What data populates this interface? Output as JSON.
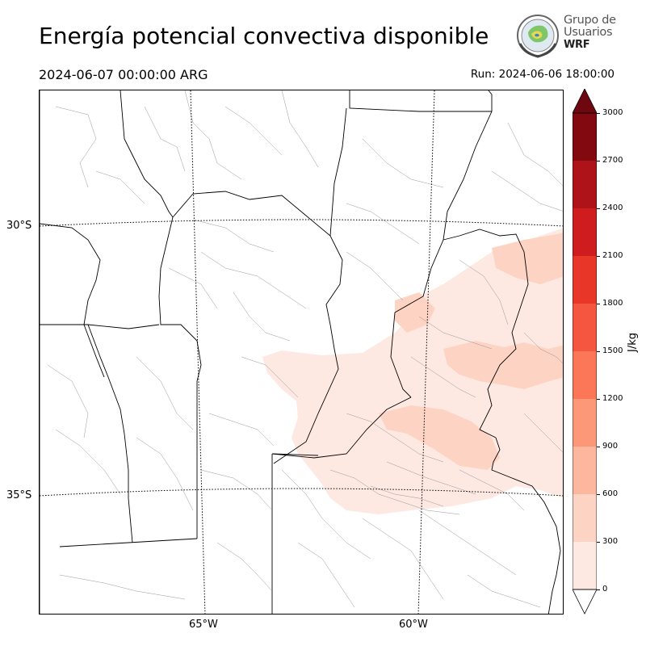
{
  "header": {
    "title": "Energía potencial convectiva disponible",
    "valid_time": "2024-06-07 00:00:00 ARG",
    "run_time": "Run: 2024-06-06 18:00:00"
  },
  "logo": {
    "line1": "Grupo de",
    "line2": "Usuarios",
    "line3": "WRF"
  },
  "map": {
    "lat_labels": [
      "30°S",
      "35°S"
    ],
    "lon_labels": [
      "65°W",
      "60°W"
    ]
  },
  "colorbar": {
    "unit": "J/kg",
    "levels": [
      0,
      300,
      600,
      900,
      1200,
      1500,
      1800,
      2100,
      2400,
      2700,
      3000
    ],
    "tick_labels": [
      "0",
      "300",
      "600",
      "900",
      "1200",
      "1500",
      "1800",
      "2100",
      "2400",
      "2700",
      "3000"
    ],
    "colors": [
      "#fee9e2",
      "#fdd3c4",
      "#fcb79e",
      "#fc9777",
      "#fb7757",
      "#f5563f",
      "#e83629",
      "#cf1c1e",
      "#ae1319",
      "#830911"
    ],
    "extend_color": "#6e0710"
  }
}
